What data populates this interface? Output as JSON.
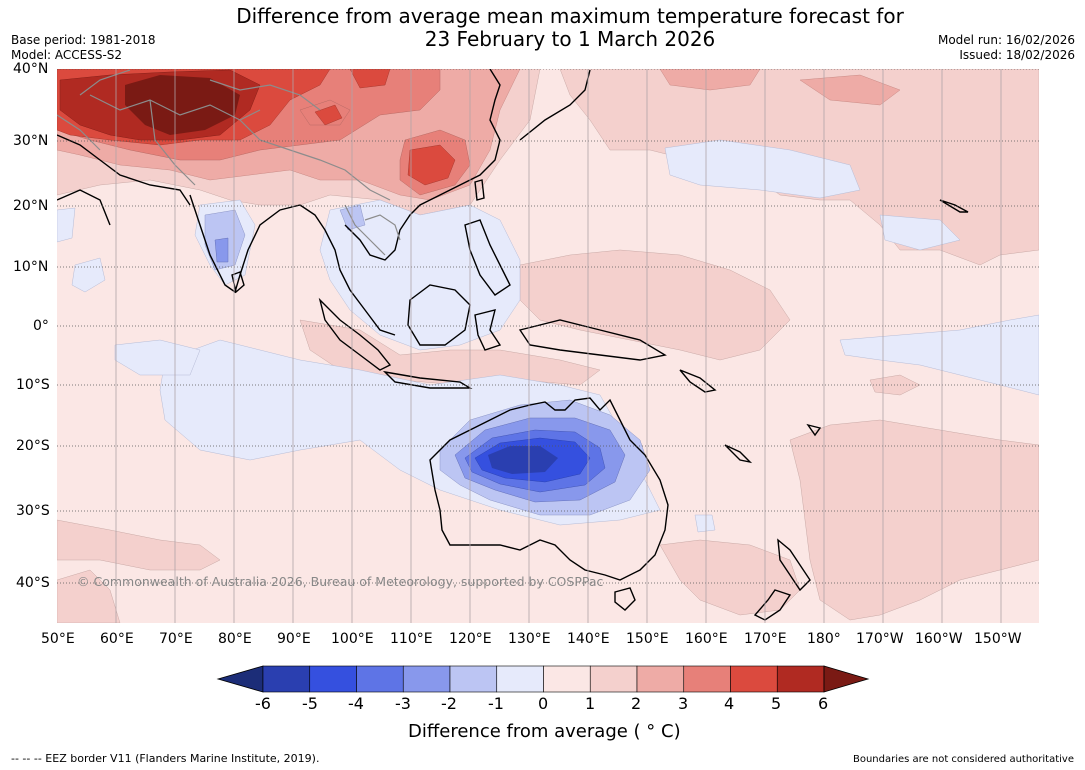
{
  "header": {
    "title_line1": "Difference from average mean maximum temperature forecast for",
    "title_line2": "23 February to 1 March 2026",
    "base_period": "Base period: 1981-2018",
    "model": "Model: ACCESS-S2",
    "model_run": "Model run: 16/02/2026",
    "issued": "Issued: 18/02/2026"
  },
  "map": {
    "lat_labels": [
      "40°N",
      "30°N",
      "20°N",
      "10°N",
      "0°",
      "10°S",
      "20°S",
      "30°S",
      "40°S"
    ],
    "lon_labels": [
      "50°E",
      "60°E",
      "70°E",
      "80°E",
      "90°E",
      "100°E",
      "110°E",
      "120°E",
      "130°E",
      "140°E",
      "150°E",
      "160°E",
      "170°E",
      "180°",
      "170°W",
      "160°W",
      "150°W"
    ],
    "copyright": "© Commonwealth of Australia 2026, Bureau of Meteorology, supported by COSPPac"
  },
  "colorbar": {
    "labels": [
      "-6",
      "-5",
      "-4",
      "-3",
      "-2",
      "-1",
      "0",
      "1",
      "2",
      "3",
      "4",
      "5",
      "6"
    ],
    "colors": [
      "#1c2d78",
      "#2a3fb0",
      "#3550df",
      "#5e74e6",
      "#8898ec",
      "#bcc5f3",
      "#e6eafb",
      "#fbe7e5",
      "#f4d0cd",
      "#eeaba6",
      "#e78079",
      "#db4a3e",
      "#b02a22",
      "#7a1a14"
    ],
    "title": "Difference from average ( ° C)"
  },
  "footer": {
    "eez_legend": "--  --  -- EEZ border V11 (Flanders Marine Institute, 2019).",
    "disclaimer": "Boundaries are not considered authoritative"
  }
}
